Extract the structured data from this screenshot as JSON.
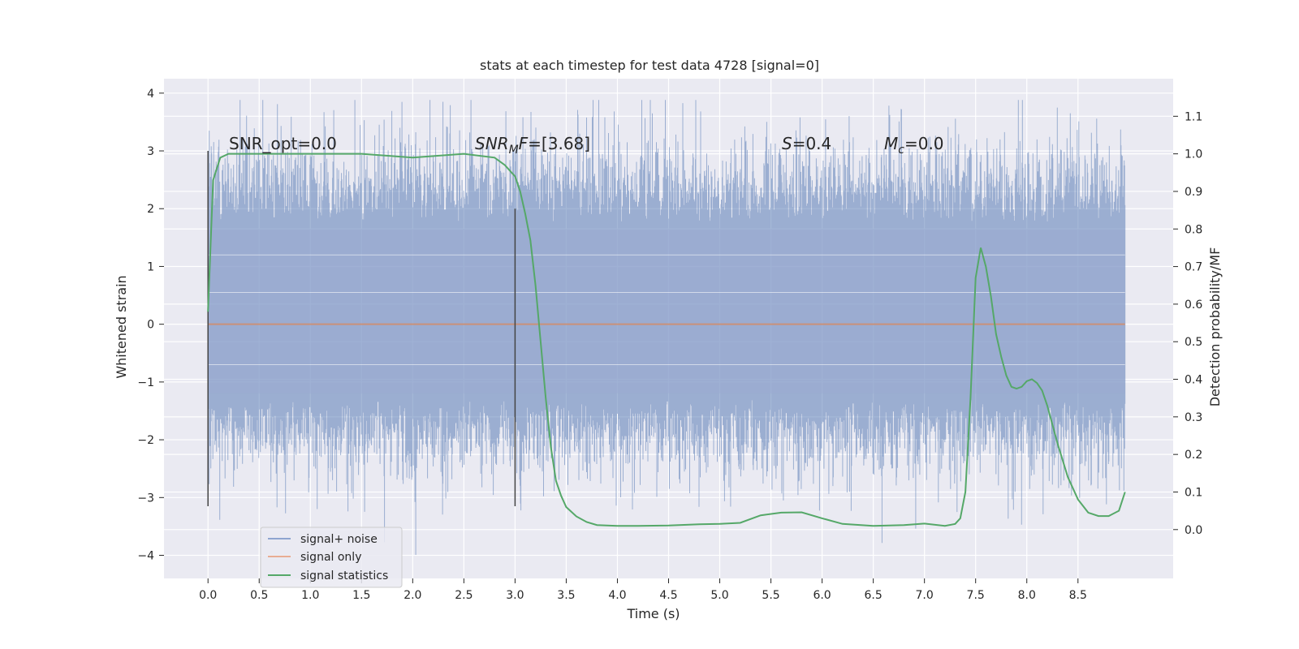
{
  "chart_data": {
    "type": "line",
    "title": "stats at each timestep for test data 4728 [signal=0]",
    "xlabel": "Time (s)",
    "ylabel": "Whitened strain",
    "ylabel_right": "Detection probability/MF",
    "xlim": [
      -0.43,
      9.43
    ],
    "ylim": [
      -4.4,
      4.25
    ],
    "ylim_right": [
      -0.13,
      1.2
    ],
    "x_ticks": [
      "0.0",
      "0.5",
      "1.0",
      "1.5",
      "2.0",
      "2.5",
      "3.0",
      "3.5",
      "4.0",
      "4.5",
      "5.0",
      "5.5",
      "6.0",
      "6.5",
      "7.0",
      "7.5",
      "8.0",
      "8.5"
    ],
    "y_ticks": [
      "4",
      "3",
      "2",
      "1",
      "0",
      "−1",
      "−2",
      "−3",
      "−4"
    ],
    "y_ticks_right": [
      "1.1",
      "1.0",
      "0.9",
      "0.8",
      "0.7",
      "0.6",
      "0.5",
      "0.4",
      "0.3",
      "0.2",
      "0.1",
      "0.0"
    ],
    "grid": true,
    "legend_position": "lower-left",
    "colors": {
      "background": "#eaeaf2",
      "noise": "#4c72b0",
      "signal": "#dd8452",
      "stats": "#55a868",
      "vline": "#444444"
    },
    "annotations": {
      "snr_opt": "SNR_opt=0.0",
      "snr_mf_main": "SNR",
      "snr_mf_sub": "M",
      "snr_mf_f": "F",
      "snr_mf_value": "=[3.68]",
      "s_symbol": "S",
      "s_value": "=0.4",
      "mc_symbol": "M",
      "mc_sub": "c",
      "mc_value": "=0.0"
    },
    "series": [
      {
        "name": "signal+ noise",
        "kind": "noise_band",
        "x_start": 0.0,
        "x_end": 8.96,
        "dense_band": [
          -1.3,
          1.75
        ],
        "extremes": [
          -4.0,
          3.88
        ]
      },
      {
        "name": "signal only",
        "kind": "flat",
        "x": [
          0.0,
          8.96
        ],
        "y": [
          0.0,
          0.0
        ]
      },
      {
        "name": "signal statistics",
        "kind": "line",
        "axis": "right",
        "x": [
          0.0,
          0.05,
          0.12,
          0.2,
          0.3,
          0.5,
          1.0,
          1.5,
          2.0,
          2.5,
          2.8,
          2.9,
          3.0,
          3.05,
          3.1,
          3.15,
          3.2,
          3.25,
          3.3,
          3.35,
          3.4,
          3.45,
          3.5,
          3.6,
          3.7,
          3.8,
          4.0,
          4.2,
          4.5,
          4.8,
          5.0,
          5.2,
          5.4,
          5.6,
          5.8,
          6.0,
          6.2,
          6.5,
          6.8,
          7.0,
          7.2,
          7.3,
          7.35,
          7.4,
          7.45,
          7.5,
          7.55,
          7.6,
          7.65,
          7.7,
          7.75,
          7.8,
          7.85,
          7.9,
          7.95,
          8.0,
          8.05,
          8.1,
          8.15,
          8.2,
          8.25,
          8.3,
          8.4,
          8.5,
          8.6,
          8.7,
          8.8,
          8.9,
          8.96
        ],
        "y": [
          0.58,
          0.93,
          0.99,
          1.0,
          1.0,
          1.0,
          1.0,
          1.0,
          0.99,
          1.0,
          0.99,
          0.97,
          0.94,
          0.9,
          0.84,
          0.77,
          0.65,
          0.5,
          0.35,
          0.22,
          0.13,
          0.09,
          0.06,
          0.035,
          0.02,
          0.012,
          0.01,
          0.01,
          0.011,
          0.014,
          0.015,
          0.018,
          0.038,
          0.045,
          0.046,
          0.03,
          0.015,
          0.01,
          0.012,
          0.016,
          0.01,
          0.015,
          0.03,
          0.1,
          0.35,
          0.67,
          0.75,
          0.7,
          0.62,
          0.52,
          0.46,
          0.41,
          0.38,
          0.375,
          0.38,
          0.395,
          0.4,
          0.39,
          0.37,
          0.33,
          0.28,
          0.23,
          0.14,
          0.08,
          0.045,
          0.036,
          0.036,
          0.05,
          0.1
        ]
      }
    ],
    "vlines": [
      {
        "x": 0.0,
        "y_range": [
          -3.15,
          3.0
        ]
      },
      {
        "x": 3.0,
        "y_range": [
          -3.15,
          2.0
        ]
      }
    ]
  }
}
